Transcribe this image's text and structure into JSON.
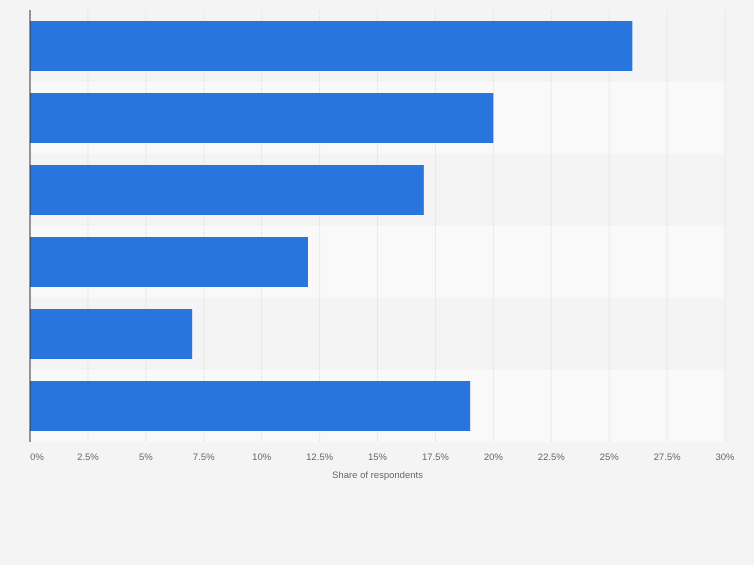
{
  "chart_data": {
    "type": "bar",
    "orientation": "horizontal",
    "categories": [
      "",
      "",
      "",
      "",
      "",
      ""
    ],
    "values": [
      26,
      20,
      17,
      12,
      7,
      19
    ],
    "xlabel": "Share of respondents",
    "ylabel": "",
    "xlim": [
      0,
      30
    ],
    "x_ticks": [
      0,
      2.5,
      5,
      7.5,
      10,
      12.5,
      15,
      17.5,
      20,
      22.5,
      25,
      27.5,
      30
    ],
    "x_tick_labels": [
      "0%",
      "2.5%",
      "5%",
      "7.5%",
      "10%",
      "12.5%",
      "15%",
      "17.5%",
      "20%",
      "22.5%",
      "25%",
      "27.5%",
      "30%"
    ],
    "grid": true,
    "bar_color": "#2876dd",
    "background": "#f4f4f4",
    "band_colors": [
      "#f4f4f4",
      "#f9f9f9"
    ]
  }
}
